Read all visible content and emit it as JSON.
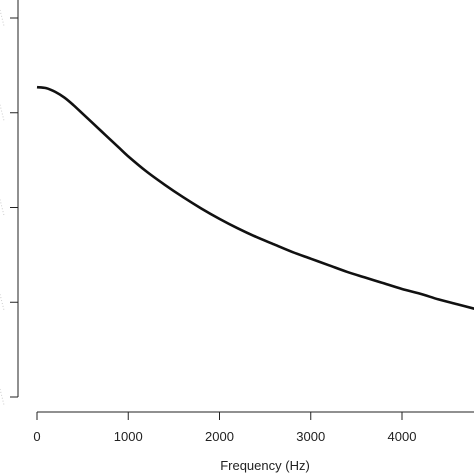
{
  "chart_data": {
    "type": "line",
    "title": "",
    "xlabel": "Frequency (Hz)",
    "ylabel": "",
    "xlim": [
      0,
      4800
    ],
    "ylim": [
      0,
      4.2
    ],
    "x_ticks": [
      0,
      1000,
      2000,
      3000,
      4000
    ],
    "x_tick_labels": [
      "0",
      "1000",
      "2000",
      "3000",
      "4000"
    ],
    "y_ticks": [
      0,
      1,
      2,
      3,
      4
    ],
    "grid": false,
    "series": [
      {
        "color": "#111111",
        "x": [
          0,
          100,
          200,
          300,
          400,
          500,
          600,
          700,
          800,
          900,
          1000,
          1200,
          1400,
          1600,
          1800,
          2000,
          2200,
          2400,
          2600,
          2800,
          3000,
          3200,
          3400,
          3600,
          3800,
          4000,
          4200,
          4400,
          4600,
          4800
        ],
        "y": [
          3.27,
          3.26,
          3.22,
          3.16,
          3.08,
          2.99,
          2.9,
          2.81,
          2.72,
          2.63,
          2.54,
          2.38,
          2.24,
          2.11,
          1.99,
          1.88,
          1.78,
          1.69,
          1.61,
          1.53,
          1.46,
          1.39,
          1.32,
          1.26,
          1.2,
          1.14,
          1.09,
          1.03,
          0.98,
          0.93
        ]
      }
    ]
  }
}
